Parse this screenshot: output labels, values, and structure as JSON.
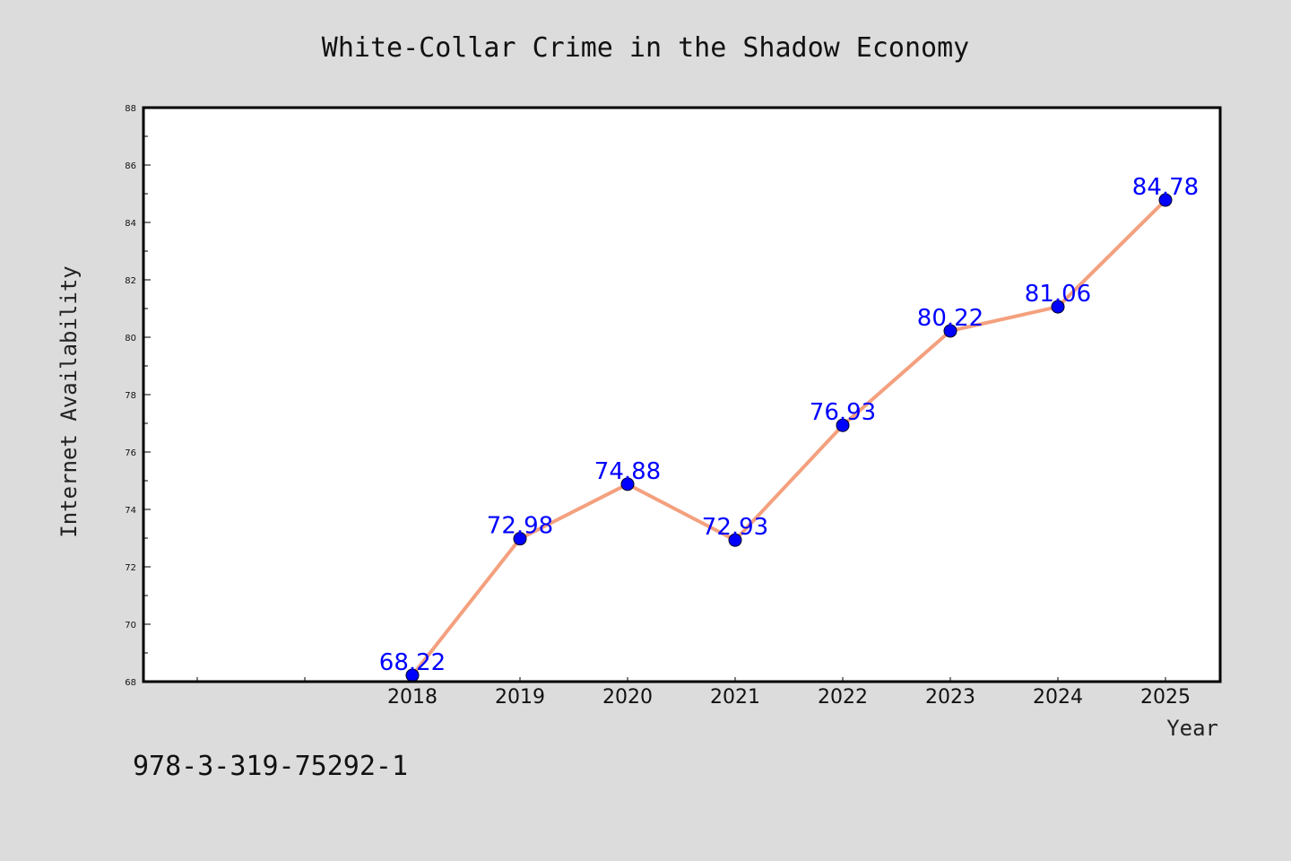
{
  "chart_data": {
    "type": "line",
    "title": "White-Collar Crime in the Shadow Economy",
    "xlabel": "Year",
    "ylabel": "Internet Availability",
    "x": [
      "2018",
      "2019",
      "2020",
      "2021",
      "2022",
      "2023",
      "2024",
      "2025"
    ],
    "series": [
      {
        "values": [
          68.22,
          72.98,
          74.88,
          72.93,
          76.93,
          80.22,
          81.06,
          84.78
        ],
        "data_labels": [
          "68.22",
          "72.98",
          "74.88",
          "72.93",
          "76.93",
          "80.22",
          "81.06",
          "84.78"
        ],
        "line_color": "#f4a07e",
        "marker_color": "#0000ff"
      }
    ],
    "ylim": [
      68,
      88
    ],
    "yticks": [
      "68",
      "70",
      "72",
      "74",
      "76",
      "78",
      "80",
      "82",
      "84",
      "86",
      "88"
    ],
    "grid": false,
    "legend": "none"
  },
  "footer": {
    "code": "978-3-319-75292-1"
  },
  "colors": {
    "background": "#dcdcdc",
    "plot_area": "#ffffff",
    "line": "#f4a07e",
    "marker": "#0000ff",
    "data_label": "#0000ff"
  }
}
